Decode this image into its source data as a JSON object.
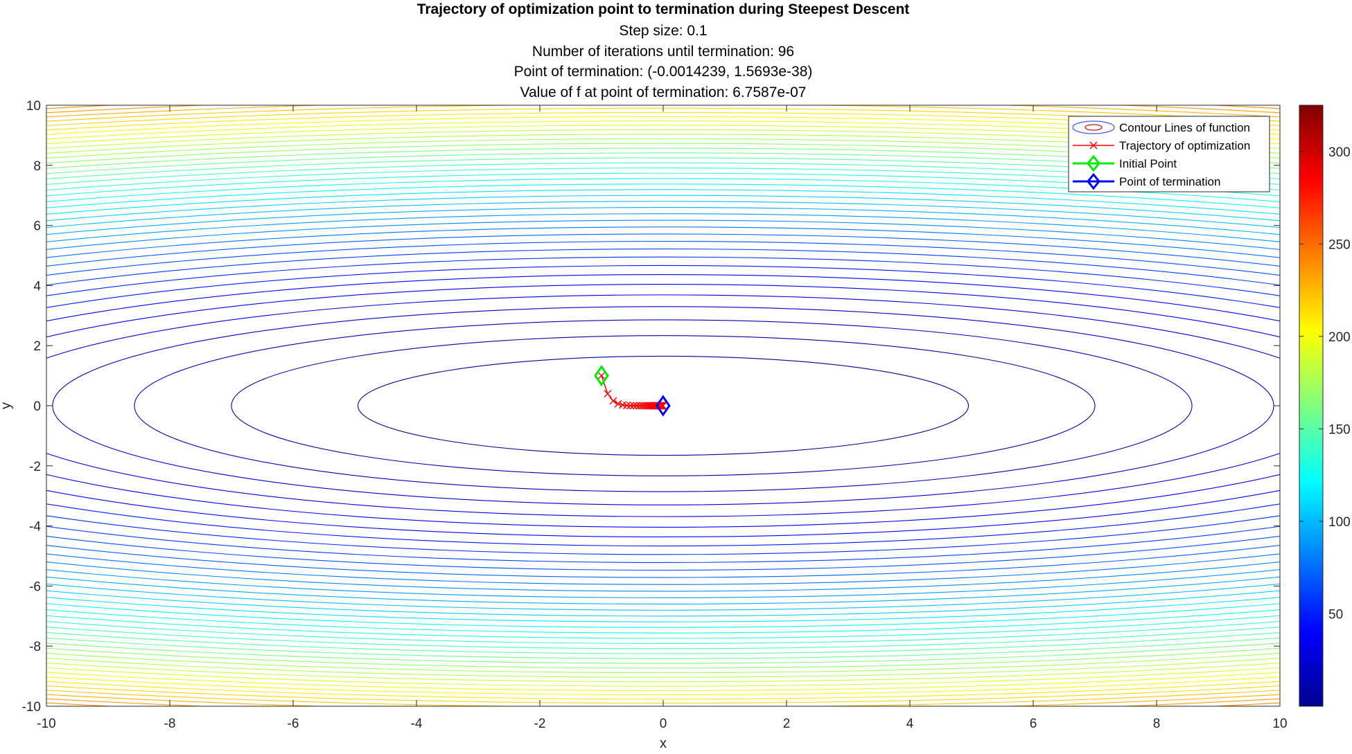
{
  "chart_data": {
    "type": "contour",
    "title": "Trajectory of optimization point to termination during Steepest Descent",
    "subtitle_lines": [
      "Step size: 0.1",
      "Number of iterations until termination: 96",
      "Point of termination: (-0.0014239, 1.5693e-38)",
      "Value of f at point of termination: 6.7587e-07"
    ],
    "xlabel": "x",
    "ylabel": "y",
    "xlim": [
      -10,
      10
    ],
    "ylim": [
      -10,
      10
    ],
    "xticks": [
      -10,
      -8,
      -6,
      -4,
      -2,
      0,
      2,
      4,
      6,
      8,
      10
    ],
    "yticks": [
      -10,
      -8,
      -6,
      -4,
      -2,
      0,
      2,
      4,
      6,
      8,
      10
    ],
    "colorbar": {
      "colormap": "jet",
      "range": [
        0,
        325
      ],
      "ticks": [
        50,
        100,
        150,
        200,
        250,
        300
      ]
    },
    "legend": {
      "placement": "top-right",
      "entries": [
        {
          "label": "Contour Lines of function",
          "color": "#3d5bff",
          "marker": "contour"
        },
        {
          "label": "Trajectory of optimization",
          "color": "#ff0000",
          "marker": "x"
        },
        {
          "label": "Initial Point",
          "color": "#00ee00",
          "marker": "diamond"
        },
        {
          "label": "Point of termination",
          "color": "#0000ff",
          "marker": "diamond"
        }
      ]
    },
    "contour_levels": {
      "x_intercepts_near_center": [
        4.95,
        7.0,
        8.57,
        9.9
      ],
      "y_intercepts_near_center": [
        1.65,
        2.33,
        2.86,
        3.3
      ],
      "level_step": 6,
      "max_level": 324
    },
    "initial_point": {
      "x": -1,
      "y": 1
    },
    "termination_point": {
      "x": -0.0014239,
      "y": 0
    },
    "trajectory": {
      "x": [
        -1,
        -0.9,
        -0.81,
        -0.729,
        -0.656,
        -0.59,
        -0.531,
        -0.478,
        -0.43,
        -0.387,
        -0.349,
        -0.314,
        -0.282,
        -0.254,
        -0.229,
        -0.206,
        -0.185,
        -0.167,
        -0.15,
        -0.135,
        -0.122,
        -0.109,
        -0.098,
        -0.089,
        -0.08,
        -0.072,
        -0.065,
        -0.058,
        -0.052,
        -0.047,
        -0.042,
        -0.038,
        -0.034,
        -0.031,
        -0.028,
        -0.025,
        -0.023,
        -0.02,
        -0.018,
        -0.016,
        -0.0014239
      ],
      "y": [
        1,
        0.4,
        0.16,
        0.064,
        0.026,
        0.01,
        0.004,
        0.002,
        0.001,
        0.0003,
        0.0001,
        0,
        0,
        0,
        0,
        0,
        0,
        0,
        0,
        0,
        0,
        0,
        0,
        0,
        0,
        0,
        0,
        0,
        0,
        0,
        0,
        0,
        0,
        0,
        0,
        0,
        0,
        0,
        0,
        0,
        0
      ]
    }
  }
}
